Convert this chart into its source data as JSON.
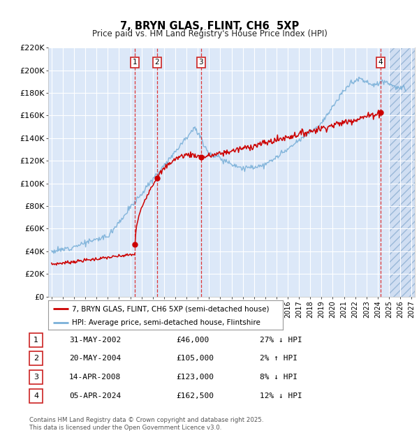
{
  "title": "7, BRYN GLAS, FLINT, CH6  5XP",
  "subtitle": "Price paid vs. HM Land Registry's House Price Index (HPI)",
  "ylim": [
    0,
    220000
  ],
  "yticks": [
    0,
    20000,
    40000,
    60000,
    80000,
    100000,
    120000,
    140000,
    160000,
    180000,
    200000,
    220000
  ],
  "ytick_labels": [
    "£0",
    "£20K",
    "£40K",
    "£60K",
    "£80K",
    "£100K",
    "£120K",
    "£140K",
    "£160K",
    "£180K",
    "£200K",
    "£220K"
  ],
  "xlim_start": 1994.7,
  "xlim_end": 2027.3,
  "background_color": "#ffffff",
  "plot_bg_color": "#dce8f8",
  "grid_color": "#ffffff",
  "red_line_color": "#cc0000",
  "blue_line_color": "#7ab0d8",
  "transactions": [
    {
      "num": 1,
      "date": "31-MAY-2002",
      "price": 46000,
      "pct": "27%",
      "dir": "↓",
      "x": 2002.42
    },
    {
      "num": 2,
      "date": "20-MAY-2004",
      "price": 105000,
      "pct": "2%",
      "dir": "↑",
      "x": 2004.38
    },
    {
      "num": 3,
      "date": "14-APR-2008",
      "price": 123000,
      "pct": "8%",
      "dir": "↓",
      "x": 2008.29
    },
    {
      "num": 4,
      "date": "05-APR-2024",
      "price": 162500,
      "pct": "12%",
      "dir": "↓",
      "x": 2024.26
    }
  ],
  "legend_line1": "7, BRYN GLAS, FLINT, CH6 5XP (semi-detached house)",
  "legend_line2": "HPI: Average price, semi-detached house, Flintshire",
  "footnote": "Contains HM Land Registry data © Crown copyright and database right 2025.\nThis data is licensed under the Open Government Licence v3.0.",
  "hatch_start": 2025.0
}
